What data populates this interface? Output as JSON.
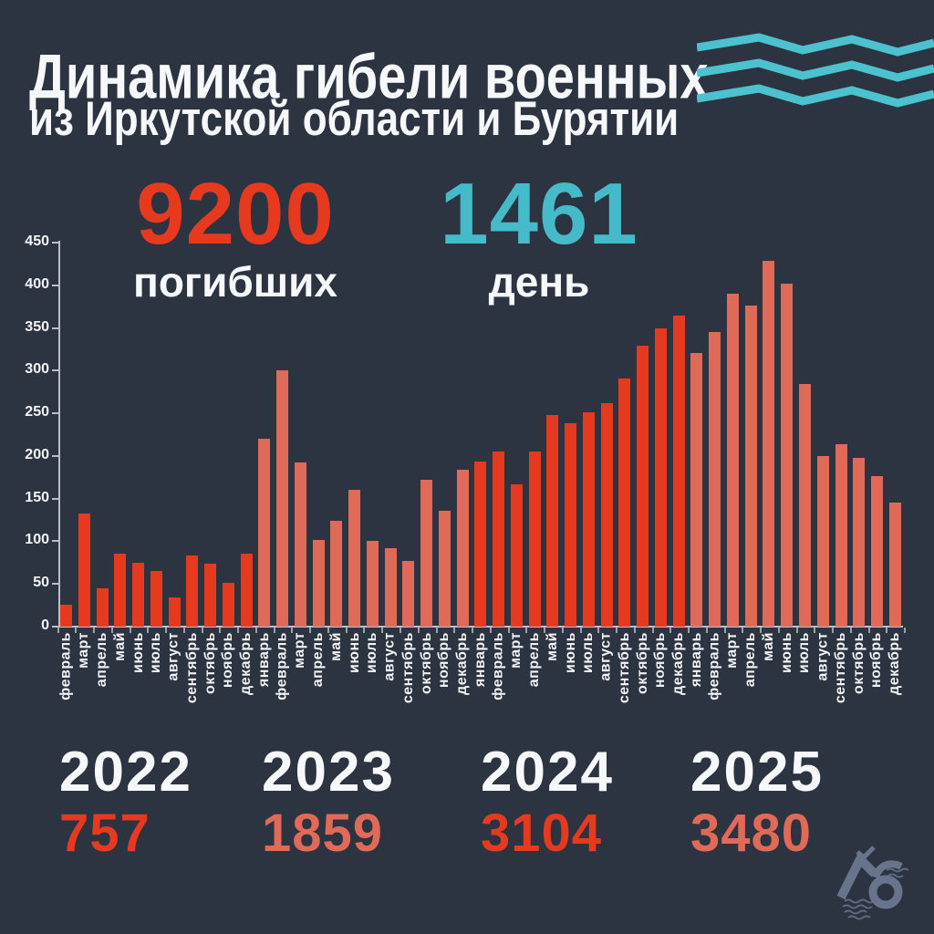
{
  "title": {
    "line1": "Динамика гибели военных",
    "line2": "из Иркутской области и Бурятии"
  },
  "stats": {
    "deaths": {
      "value": "9200",
      "label": "погибших",
      "color": "#e6391e"
    },
    "days": {
      "value": "1461",
      "label": "день",
      "color": "#45bac9"
    }
  },
  "chart_data": {
    "type": "bar",
    "title": "Динамика гибели военных из Иркутской области и Бурятии",
    "xlabel": "",
    "ylabel": "",
    "ylim": [
      0,
      450
    ],
    "yticks": [
      0,
      50,
      100,
      150,
      200,
      250,
      300,
      350,
      400,
      450
    ],
    "grid": false,
    "legend": "none",
    "groups": [
      {
        "year": "2022",
        "total": "757",
        "color": "#e6391e",
        "months": [
          "февраль",
          "март",
          "апрель",
          "май",
          "июнь",
          "июль",
          "август",
          "сентябрь",
          "октябрь",
          "ноябрь",
          "декабрь"
        ],
        "values": [
          26,
          133,
          45,
          85,
          75,
          65,
          34,
          83,
          74,
          51,
          86
        ]
      },
      {
        "year": "2023",
        "total": "1859",
        "color": "#e06a57",
        "months": [
          "январь",
          "февраль",
          "март",
          "апрель",
          "май",
          "июнь",
          "июль",
          "август",
          "сентябрь",
          "октябрь",
          "ноябрь",
          "декабрь"
        ],
        "values": [
          220,
          300,
          192,
          102,
          124,
          160,
          100,
          92,
          77,
          172,
          136,
          184
        ]
      },
      {
        "year": "2024",
        "total": "3104",
        "color": "#e6391e",
        "months": [
          "январь",
          "февраль",
          "март",
          "апрель",
          "май",
          "июнь",
          "июль",
          "август",
          "сентябрь",
          "октябрь",
          "ноябрь",
          "декабрь"
        ],
        "values": [
          194,
          205,
          167,
          205,
          248,
          238,
          251,
          262,
          291,
          329,
          350,
          364
        ]
      },
      {
        "year": "2025",
        "total": "3480",
        "color": "#e06a57",
        "months": [
          "январь",
          "февраль",
          "март",
          "апрель",
          "май",
          "июнь",
          "июль",
          "август",
          "сентябрь",
          "октябрь",
          "ноябрь",
          "декабрь"
        ],
        "values": [
          321,
          345,
          390,
          376,
          429,
          402,
          284,
          200,
          214,
          198,
          176,
          145
        ]
      }
    ]
  },
  "decor": {
    "waves_icon": "three-teal-zigzag-waves",
    "waves_color": "#4cc2ce",
    "logo_monogram": "ЛБ",
    "logo_color": "#6f7b95",
    "background": "#2d3441",
    "axis_color": "#b9bfc9"
  }
}
